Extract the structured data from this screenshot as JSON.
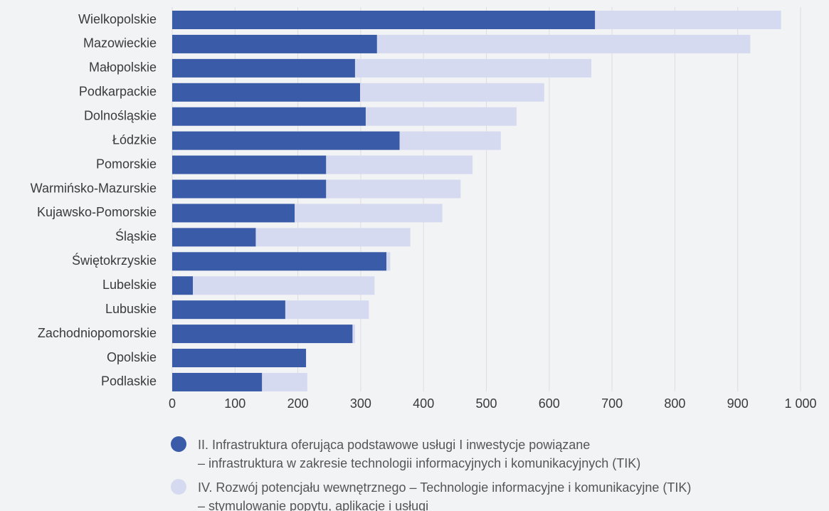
{
  "chart_data": {
    "type": "stacked-barh",
    "categories": [
      "Wielkopolskie",
      "Mazowieckie",
      "Małopolskie",
      "Podkarpackie",
      "Dolnośląskie",
      "Łódzkie",
      "Pomorskie",
      "Warmińsko-Mazurskie",
      "Kujawsko-Pomorskie",
      "Śląskie",
      "Świętokrzyskie",
      "Lubelskie",
      "Lubuskie",
      "Zachodniopomorskie",
      "Opolskie",
      "Podlaskie"
    ],
    "series": [
      {
        "name": "II. Infrastruktura oferująca podstawowe usługi I inwestycje powiązane\n– infrastruktura w zakresie technologii informacyjnych i komunikacyjnych (TIK)",
        "color": "#3a5ba8",
        "values": [
          673,
          326,
          291,
          299,
          308,
          362,
          245,
          245,
          195,
          133,
          341,
          33,
          180,
          287,
          213,
          143
        ]
      },
      {
        "name": "IV. Rozwój potencjału wewnętrznego – Technologie informacyjne i komunikacyjne (TIK)\n– stymulowanie popytu, aplikacje i usługi",
        "color": "#d5daf0",
        "values": [
          296,
          594,
          376,
          293,
          240,
          161,
          233,
          214,
          235,
          246,
          6,
          289,
          133,
          4,
          0,
          72
        ]
      }
    ],
    "xlim": [
      0,
      1000
    ],
    "xticks": [
      0,
      100,
      200,
      300,
      400,
      500,
      600,
      700,
      800,
      900,
      {
        "value": 1000,
        "label": "1 000"
      }
    ],
    "grid": true
  }
}
